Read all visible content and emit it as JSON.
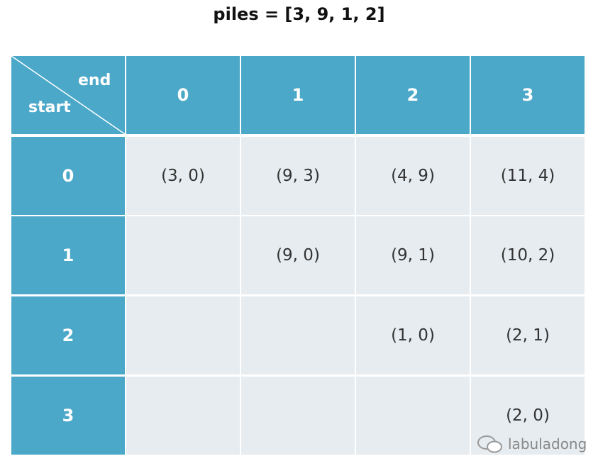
{
  "title": "piles = [3, 9, 1, 2]",
  "table": {
    "corner": {
      "end": "end",
      "start": "start"
    },
    "columns": [
      "0",
      "1",
      "2",
      "3"
    ],
    "rows": [
      {
        "label": "0",
        "cells": [
          "(3, 0)",
          "(9, 3)",
          "(4, 9)",
          "(11, 4)"
        ]
      },
      {
        "label": "1",
        "cells": [
          null,
          "(9, 0)",
          "(9, 1)",
          "(10, 2)"
        ]
      },
      {
        "label": "2",
        "cells": [
          null,
          null,
          "(1, 0)",
          "(2, 1)"
        ]
      },
      {
        "label": "3",
        "cells": [
          null,
          null,
          null,
          "(2, 0)"
        ]
      }
    ]
  },
  "watermark": "labuladong"
}
